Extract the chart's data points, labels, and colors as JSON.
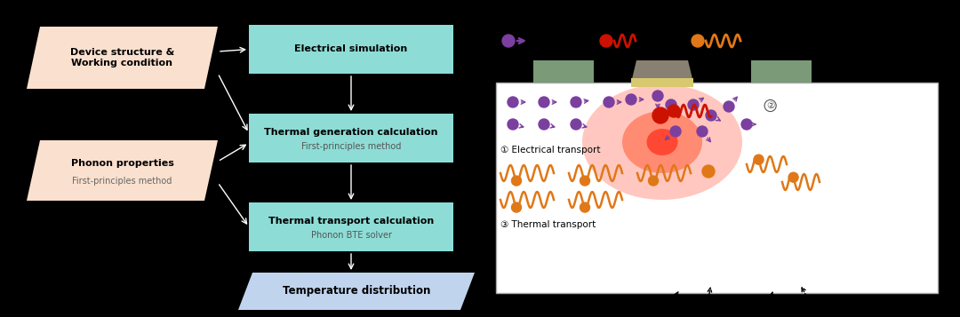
{
  "bg_color": "#000000",
  "salmon_fill": "#FAE0CE",
  "cyan_fill": "#8DDDD6",
  "blue_fill": "#C0D4EE",
  "box1_title_bold": "Device structure &\nWorking condition",
  "box2_title_bold": "Phonon properties",
  "box2_sub": "First-principles method",
  "box3_title": "Electrical simulation",
  "box4_title": "Thermal generation calculation",
  "box4_sub": "First-principles method",
  "box5_title": "Thermal transport calculation",
  "box5_sub": "Phonon BTE solver",
  "box6_title": "Temperature distribution",
  "label_elec": "① Electrical transport",
  "label_therm": "③ Thermal transport",
  "label_circle2": "②",
  "purple": "#7B3FA0",
  "red_hot": "#CC1100",
  "orange": "#E07818",
  "gate_green": "#7A9A78",
  "gate_gray": "#888070",
  "gate_insul": "#D8C870"
}
